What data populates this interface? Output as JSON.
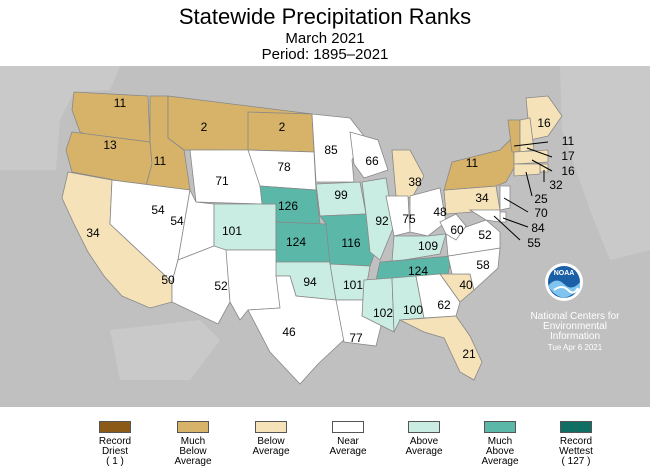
{
  "header": {
    "title": "Statewide Precipitation Ranks",
    "month": "March 2021",
    "period": "Period: 1895–2021"
  },
  "colors": {
    "record_driest": "#8b5a16",
    "much_below": "#d7b36a",
    "below": "#f5e2b8",
    "near": "#ffffff",
    "above": "#c9ece3",
    "much_above": "#5bb8a8",
    "record_wettest": "#0f6f62",
    "background": "#c0c0c0"
  },
  "legend": [
    {
      "lines": [
        "Record",
        "Driest",
        "( 1 )"
      ],
      "color": "#8b5a16"
    },
    {
      "lines": [
        "Much",
        "Below",
        "Average"
      ],
      "color": "#d7b36a"
    },
    {
      "lines": [
        "Below",
        "Average"
      ],
      "color": "#f5e2b8"
    },
    {
      "lines": [
        "Near",
        "Average"
      ],
      "color": "#ffffff"
    },
    {
      "lines": [
        "Above",
        "Average"
      ],
      "color": "#c9ece3"
    },
    {
      "lines": [
        "Much",
        "Above",
        "Average"
      ],
      "color": "#5bb8a8"
    },
    {
      "lines": [
        "Record",
        "Wettest",
        "( 127 )"
      ],
      "color": "#0f6f62"
    }
  ],
  "states": [
    {
      "name": "WA",
      "rank": "11"
    },
    {
      "name": "OR",
      "rank": "13"
    },
    {
      "name": "CA",
      "rank": "34"
    },
    {
      "name": "ID",
      "rank": "11"
    },
    {
      "name": "NV",
      "rank": "54"
    },
    {
      "name": "MT",
      "rank": "2"
    },
    {
      "name": "WY",
      "rank": "71"
    },
    {
      "name": "UT",
      "rank": "54"
    },
    {
      "name": "AZ",
      "rank": "50"
    },
    {
      "name": "CO",
      "rank": "101"
    },
    {
      "name": "NM",
      "rank": "52"
    },
    {
      "name": "ND",
      "rank": "2"
    },
    {
      "name": "SD",
      "rank": "78"
    },
    {
      "name": "NE",
      "rank": "126"
    },
    {
      "name": "KS",
      "rank": "124"
    },
    {
      "name": "OK",
      "rank": "94"
    },
    {
      "name": "TX",
      "rank": "46"
    },
    {
      "name": "MN",
      "rank": "85"
    },
    {
      "name": "IA",
      "rank": "99"
    },
    {
      "name": "MO",
      "rank": "116"
    },
    {
      "name": "AR",
      "rank": "101"
    },
    {
      "name": "LA",
      "rank": "77"
    },
    {
      "name": "WI",
      "rank": "66"
    },
    {
      "name": "IL",
      "rank": "92"
    },
    {
      "name": "MI",
      "rank": "38"
    },
    {
      "name": "IN",
      "rank": "75"
    },
    {
      "name": "OH",
      "rank": "48"
    },
    {
      "name": "KY",
      "rank": "109"
    },
    {
      "name": "TN",
      "rank": "124"
    },
    {
      "name": "MS",
      "rank": "102"
    },
    {
      "name": "AL",
      "rank": "100"
    },
    {
      "name": "GA",
      "rank": "62"
    },
    {
      "name": "FL",
      "rank": "21"
    },
    {
      "name": "SC",
      "rank": "40"
    },
    {
      "name": "NC",
      "rank": "58"
    },
    {
      "name": "VA",
      "rank": "52"
    },
    {
      "name": "WV",
      "rank": "60"
    },
    {
      "name": "PA",
      "rank": "34"
    },
    {
      "name": "NY",
      "rank": "11"
    },
    {
      "name": "VT",
      "rank": "11"
    },
    {
      "name": "ME",
      "rank": "16"
    },
    {
      "name": "NH",
      "rank": "17"
    },
    {
      "name": "MA",
      "rank": "16"
    },
    {
      "name": "RI",
      "rank": "32"
    },
    {
      "name": "CT",
      "rank": "25"
    },
    {
      "name": "NJ",
      "rank": "70"
    },
    {
      "name": "DE",
      "rank": "84"
    },
    {
      "name": "MD",
      "rank": "55"
    }
  ],
  "logo": {
    "text": "NOAA"
  },
  "credit": {
    "line1": "National Centers for",
    "line2": "Environmental",
    "line3": "Information",
    "date": "Tue Apr  6 2021"
  }
}
